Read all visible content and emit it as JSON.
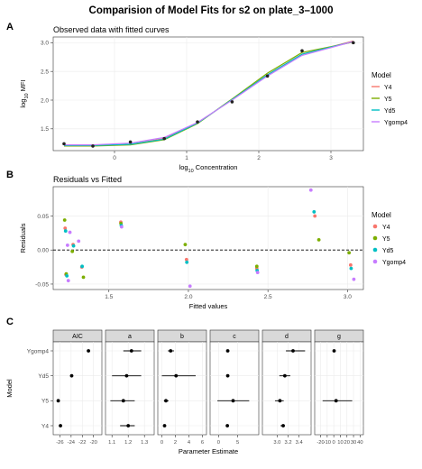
{
  "title": "Comparision of Model Fits for s2 on plate_3–1000",
  "colors": {
    "Y4": "#F8766D",
    "Y5": "#7CAE00",
    "Yd5": "#00BFC4",
    "Ygomp4": "#C77CFF",
    "black": "#000000",
    "grid": "#EBEBEB",
    "strip": "#D9D9D9"
  },
  "model_order": [
    "Y4",
    "Y5",
    "Yd5",
    "Ygomp4"
  ],
  "legend_title": "Model",
  "chart_data": [
    {
      "type": "line",
      "panel_tag": "A",
      "title": "Observed data with fitted curves",
      "xlabel_prefix": "log",
      "xlabel_sub": "10",
      "xlabel_suffix": " Concentration",
      "ylabel_prefix": "log",
      "ylabel_sub": "10",
      "ylabel_suffix": " MFI",
      "xlim": [
        -0.85,
        3.45
      ],
      "ylim": [
        1.12,
        3.1
      ],
      "xticks": [
        0,
        1,
        2,
        3
      ],
      "yticks": [
        1.5,
        2.0,
        2.5,
        3.0
      ],
      "ytick_labels": [
        "1.5",
        "2.0",
        "2.5",
        "3.0"
      ],
      "observed": {
        "x": [
          -0.7,
          -0.3,
          0.22,
          0.69,
          1.15,
          1.63,
          2.12,
          2.6,
          3.31
        ],
        "y": [
          1.24,
          1.2,
          1.27,
          1.33,
          1.62,
          1.97,
          2.42,
          2.86,
          3.0
        ]
      },
      "series": [
        {
          "name": "Y4",
          "x": [
            -0.7,
            -0.3,
            0.22,
            0.69,
            1.15,
            1.63,
            2.12,
            2.6,
            3.31
          ],
          "y": [
            1.2,
            1.205,
            1.23,
            1.33,
            1.6,
            2.01,
            2.44,
            2.8,
            3.03
          ]
        },
        {
          "name": "Y5",
          "x": [
            -0.7,
            -0.3,
            0.22,
            0.69,
            1.15,
            1.63,
            2.12,
            2.6,
            3.31
          ],
          "y": [
            1.2,
            1.2,
            1.22,
            1.31,
            1.59,
            2.02,
            2.47,
            2.83,
            3.01
          ]
        },
        {
          "name": "Yd5",
          "x": [
            -0.7,
            -0.3,
            0.22,
            0.69,
            1.15,
            1.63,
            2.12,
            2.6,
            3.31
          ],
          "y": [
            1.21,
            1.21,
            1.23,
            1.32,
            1.6,
            2.01,
            2.44,
            2.8,
            3.02
          ]
        },
        {
          "name": "Ygomp4",
          "x": [
            -0.7,
            -0.3,
            0.22,
            0.69,
            1.15,
            1.63,
            2.12,
            2.6,
            3.31
          ],
          "y": [
            1.22,
            1.22,
            1.25,
            1.35,
            1.61,
            2.0,
            2.42,
            2.78,
            3.02
          ]
        }
      ]
    },
    {
      "type": "scatter",
      "panel_tag": "B",
      "title": "Residuals vs Fitted",
      "xlabel": "Fitted values",
      "ylabel": "Residuals",
      "xlim": [
        1.15,
        3.1
      ],
      "ylim": [
        -0.058,
        0.093
      ],
      "xticks": [
        1.5,
        2.0,
        2.5,
        3.0
      ],
      "xtick_labels": [
        "1.5",
        "2.0",
        "2.5",
        "3.0"
      ],
      "yticks": [
        -0.05,
        0.0,
        0.05
      ],
      "ytick_labels": [
        "-0.05",
        "0.00",
        "0.05"
      ],
      "zero_line": true,
      "series": [
        {
          "name": "Y4",
          "x": [
            1.225,
            1.23,
            1.275,
            1.33,
            1.575,
            1.988,
            2.43,
            2.795,
            3.02
          ],
          "y": [
            0.032,
            -0.036,
            0.008,
            -0.025,
            0.041,
            -0.014,
            -0.027,
            0.05,
            -0.022
          ]
        },
        {
          "name": "Y5",
          "x": [
            1.222,
            1.232,
            1.27,
            1.34,
            1.576,
            1.98,
            2.43,
            2.82,
            3.01
          ],
          "y": [
            0.044,
            -0.035,
            -0.002,
            -0.04,
            0.039,
            0.008,
            -0.024,
            0.015,
            -0.004
          ]
        },
        {
          "name": "Yd5",
          "x": [
            1.228,
            1.236,
            1.278,
            1.332,
            1.578,
            1.99,
            2.432,
            2.79,
            3.023
          ],
          "y": [
            0.028,
            -0.038,
            0.006,
            -0.024,
            0.036,
            -0.018,
            -0.03,
            0.056,
            -0.027
          ]
        },
        {
          "name": "Ygomp4",
          "x": [
            1.24,
            1.245,
            1.255,
            1.31,
            1.58,
            2.01,
            2.435,
            2.77,
            3.04
          ],
          "y": [
            0.007,
            -0.045,
            0.026,
            0.013,
            0.034,
            -0.053,
            -0.033,
            0.088,
            -0.043
          ]
        }
      ]
    },
    {
      "type": "scatter",
      "panel_tag": "C",
      "subtype": "faceted-forest",
      "xlabel": "Parameter Estimate",
      "ylabel": "Model",
      "categories": [
        "Y4",
        "Y5",
        "Yd5",
        "Ygomp4"
      ],
      "facets": [
        {
          "name": "AIC",
          "xlim": [
            -27.2,
            -18.5
          ],
          "xticks": [
            -26,
            -24,
            -22,
            -20
          ],
          "xtick_labels": [
            "-26",
            "-24",
            "-22",
            "-20"
          ],
          "estimates": [
            -25.9,
            -26.3,
            -23.9,
            -20.9
          ],
          "lower": [
            null,
            null,
            null,
            null
          ],
          "upper": [
            null,
            null,
            null,
            null
          ]
        },
        {
          "name": "a",
          "xlim": [
            1.06,
            1.36
          ],
          "xticks": [
            1.1,
            1.2,
            1.3
          ],
          "xtick_labels": [
            "1.1",
            "1.2",
            "1.3"
          ],
          "estimates": [
            1.2,
            1.17,
            1.19,
            1.22
          ],
          "lower": [
            1.15,
            1.09,
            1.1,
            1.17
          ],
          "upper": [
            1.24,
            1.24,
            1.28,
            1.28
          ]
        },
        {
          "name": "b",
          "xlim": [
            -0.6,
            6.6
          ],
          "xticks": [
            0,
            2,
            4,
            6
          ],
          "xtick_labels": [
            "0",
            "2",
            "4",
            "6"
          ],
          "estimates": [
            0.4,
            0.6,
            2.1,
            1.3
          ],
          "lower": [
            null,
            0.3,
            0.0,
            0.9
          ],
          "upper": [
            null,
            1.0,
            5.0,
            1.8
          ]
        },
        {
          "name": "c",
          "xlim": [
            -2.2,
            10.5
          ],
          "xticks": [
            0,
            5
          ],
          "xtick_labels": [
            "0",
            "5"
          ],
          "estimates": [
            2.3,
            3.8,
            2.4,
            2.4
          ],
          "lower": [
            null,
            -0.3,
            null,
            null
          ],
          "upper": [
            null,
            8.0,
            null,
            null
          ]
        },
        {
          "name": "d",
          "xlim": [
            2.73,
            3.62
          ],
          "xticks": [
            3.0,
            3.2,
            3.4
          ],
          "xtick_labels": [
            "3.0",
            "3.2",
            "3.4"
          ],
          "estimates": [
            3.11,
            3.05,
            3.14,
            3.29
          ],
          "lower": [
            3.06,
            2.96,
            3.04,
            3.16
          ],
          "upper": [
            3.14,
            3.12,
            3.24,
            3.51
          ]
        },
        {
          "name": "g",
          "xlim": [
            -29,
            45
          ],
          "xticks": [
            -20,
            -10,
            0,
            10,
            20,
            30,
            40
          ],
          "xtick_labels": [
            "-20",
            "-10",
            "0",
            "10",
            "20",
            "30",
            "40"
          ],
          "estimates": [
            null,
            3.5,
            null,
            0.5
          ],
          "lower": [
            null,
            -17,
            null,
            null
          ],
          "upper": [
            null,
            28,
            null,
            null
          ]
        }
      ]
    }
  ]
}
